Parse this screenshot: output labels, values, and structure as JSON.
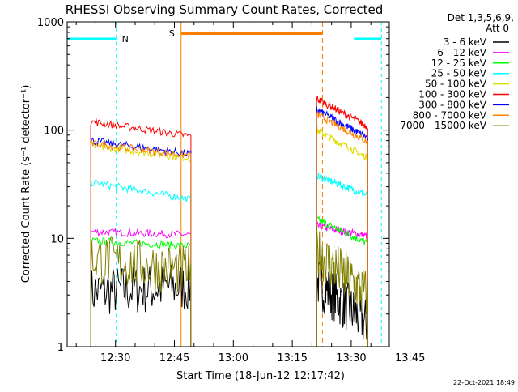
{
  "chart_data": {
    "type": "line",
    "title": "RHESSI Observing Summary Count Rates, Corrected",
    "xlabel": "Start Time (18-Jun-12 12:17:42)",
    "ylabel": "Corrected Count Rate (s⁻¹ detector⁻¹)",
    "y_scale": "log",
    "ylim": [
      1,
      1000
    ],
    "xlim_minutes_after_start": [
      0,
      82
    ],
    "y_tick_labels": [
      "1",
      "10",
      "100",
      "1000"
    ],
    "x_tick_labels": [
      "12:30",
      "12:45",
      "13:00",
      "13:15",
      "13:30",
      "13:45"
    ],
    "x_tick_minutes_after_start": [
      12.3,
      27.3,
      42.3,
      57.3,
      72.3,
      87.3
    ],
    "legend_header": [
      "Det 1,3,5,6,9,",
      "Att 0"
    ],
    "legend_position": "top-right outside",
    "footer_date": "22-Oct-2021 18:49",
    "flag_labels": {
      "night": "N",
      "saa": "S"
    },
    "night_intervals_minutes": [
      [
        0,
        12.5
      ],
      [
        73,
        80
      ]
    ],
    "saa_interval_minutes": [
      29,
      65
    ],
    "data_intervals_minutes": [
      [
        6,
        31.5
      ],
      [
        63.5,
        76.5
      ]
    ],
    "series": [
      {
        "name": "3 - 6 keV",
        "color": "#000000",
        "segment1": [
          3.2,
          3.6
        ],
        "segment2": [
          4.0,
          1.6
        ]
      },
      {
        "name": "6 - 12 keV",
        "color": "#ff00ff",
        "segment1": [
          11.5,
          10.8
        ],
        "segment2": [
          13.0,
          10.5
        ]
      },
      {
        "name": "12 - 25 keV",
        "color": "#00ff00",
        "segment1": [
          9.5,
          8.5
        ],
        "segment2": [
          15.0,
          9.0
        ]
      },
      {
        "name": "25 - 50 keV",
        "color": "#00ffff",
        "segment1": [
          33,
          23
        ],
        "segment2": [
          38,
          25
        ]
      },
      {
        "name": "50 - 100 keV",
        "color": "#dddd00",
        "segment1": [
          72,
          55
        ],
        "segment2": [
          100,
          55
        ]
      },
      {
        "name": "100 - 300 keV",
        "color": "#ff0000",
        "segment1": [
          120,
          88
        ],
        "segment2": [
          195,
          108
        ]
      },
      {
        "name": "300 - 800 keV",
        "color": "#0000ff",
        "segment1": [
          80,
          60
        ],
        "segment2": [
          155,
          85
        ]
      },
      {
        "name": "800 - 7000 keV",
        "color": "#ff8000",
        "segment1": [
          75,
          58
        ],
        "segment2": [
          140,
          78
        ]
      },
      {
        "name": "7000 - 15000 keV",
        "color": "#808000",
        "segment1": [
          6.5,
          5.0
        ],
        "segment2": [
          7.5,
          3.0
        ]
      }
    ]
  }
}
